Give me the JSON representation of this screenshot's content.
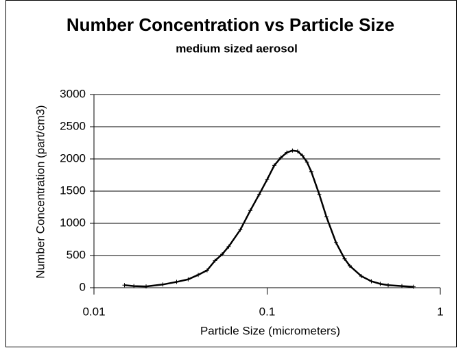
{
  "chart_data": {
    "type": "line",
    "title": "Number Concentration vs Particle Size",
    "subtitle": "medium sized aerosol",
    "x_label": "Particle Size (micrometers)",
    "y_label": "Number Concentration (part/cm3)",
    "x": [
      0.015,
      0.017,
      0.02,
      0.025,
      0.03,
      0.035,
      0.04,
      0.045,
      0.05,
      0.055,
      0.06,
      0.07,
      0.08,
      0.09,
      0.1,
      0.11,
      0.12,
      0.13,
      0.14,
      0.15,
      0.16,
      0.17,
      0.18,
      0.2,
      0.22,
      0.25,
      0.28,
      0.3,
      0.35,
      0.4,
      0.45,
      0.5,
      0.6,
      0.7
    ],
    "series": [
      {
        "color": "#000000",
        "values": [
          40,
          25,
          20,
          50,
          90,
          130,
          200,
          270,
          420,
          520,
          640,
          900,
          1200,
          1450,
          1680,
          1900,
          2020,
          2100,
          2130,
          2120,
          2050,
          1950,
          1800,
          1450,
          1100,
          700,
          450,
          340,
          180,
          100,
          60,
          40,
          25,
          15
        ]
      }
    ],
    "xlim": [
      0.01,
      1
    ],
    "xticks": [
      0.01,
      0.1,
      1
    ],
    "xlog": true,
    "ylim": [
      0,
      3000
    ],
    "yticks": [
      0,
      500,
      1000,
      1500,
      2000,
      2500,
      3000
    ],
    "grid": true
  }
}
